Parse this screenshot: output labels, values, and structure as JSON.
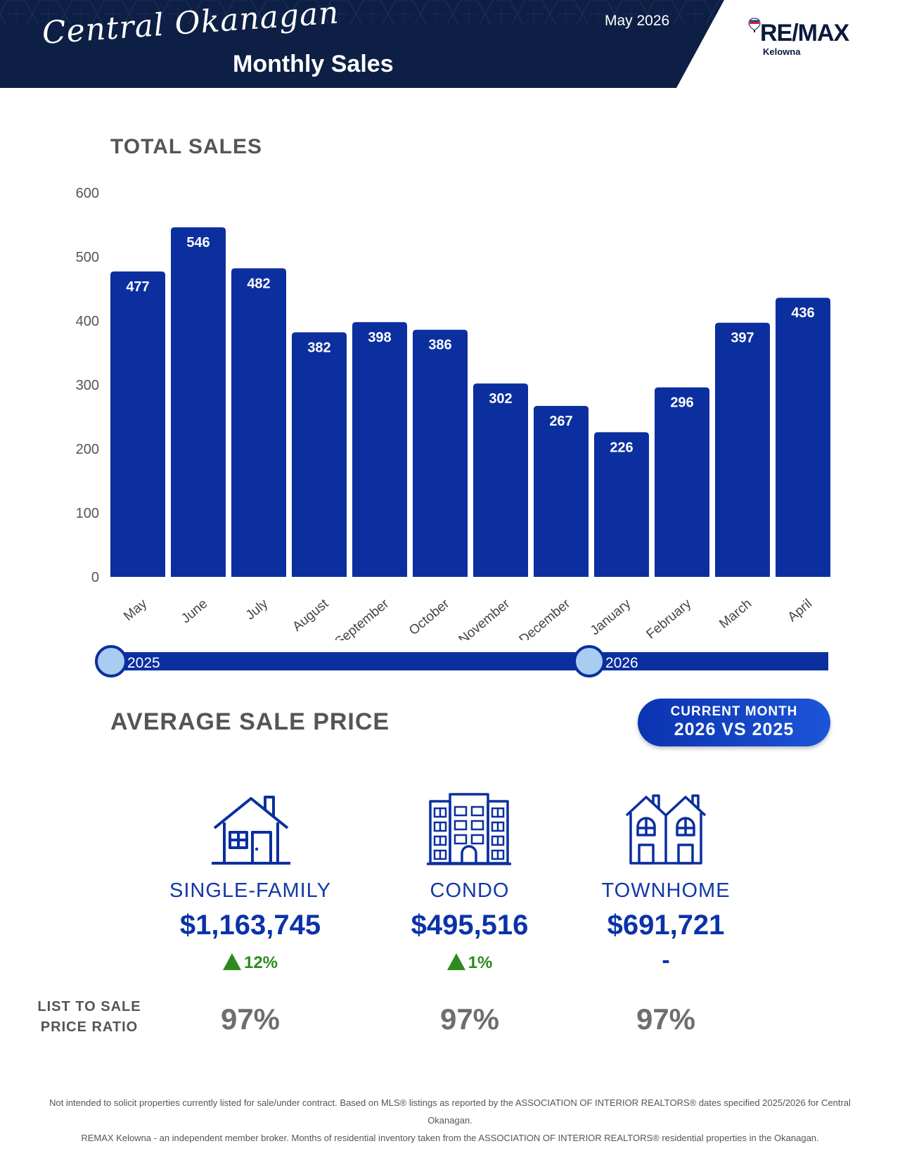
{
  "header": {
    "brand_script": "Central Okanagan",
    "title": "Monthly Sales",
    "date": "May 2026",
    "logo_text": "RE/MAX",
    "logo_sub": "Kelowna",
    "colors": {
      "navy": "#0e1f45",
      "royal": "#0b2f9e"
    }
  },
  "sections": {
    "total_sales": "TOTAL SALES",
    "average_price": "AVERAGE SALE PRICE"
  },
  "chart_data": {
    "type": "bar",
    "title": "TOTAL SALES",
    "categories": [
      "May",
      "June",
      "July",
      "August",
      "September",
      "October",
      "November",
      "December",
      "January",
      "February",
      "March",
      "April"
    ],
    "values": [
      477,
      546,
      482,
      382,
      398,
      386,
      302,
      267,
      226,
      296,
      397,
      436
    ],
    "ylim": [
      0,
      600
    ],
    "yticks": [
      0,
      100,
      200,
      300,
      400,
      500,
      600
    ],
    "bar_color": "#0b2f9e",
    "grid": false,
    "data_labels": true
  },
  "timeline": {
    "start_label": "2025",
    "mid_label": "2026"
  },
  "current_month_pill": {
    "line1": "CURRENT MONTH",
    "line2": "2026 VS 2025"
  },
  "property_types": [
    {
      "type": "SINGLE-FAMILY",
      "price": "$1,163,745",
      "change": "12%",
      "direction": "up",
      "ratio": "97%",
      "icon": "house-icon"
    },
    {
      "type": "CONDO",
      "price": "$495,516",
      "change": "1%",
      "direction": "up",
      "ratio": "97%",
      "icon": "condo-building-icon"
    },
    {
      "type": "TOWNHOME",
      "price": "$691,721",
      "change": "-",
      "direction": "none",
      "ratio": "97%",
      "icon": "townhome-icon"
    }
  ],
  "ratio_label_line1": "LIST TO SALE",
  "ratio_label_line2": "PRICE RATIO",
  "disclaimer": {
    "line1": "Not intended to solicit properties currently listed for sale/under contract. Based on MLS® listings as reported by the ASSOCIATION OF INTERIOR REALTORS® dates specified 2025/2026 for Central Okanagan.",
    "line2": "REMAX Kelowna - an independent member broker. Months of residential inventory taken from the ASSOCIATION OF INTERIOR REALTORS® residential properties in the Okanagan."
  }
}
